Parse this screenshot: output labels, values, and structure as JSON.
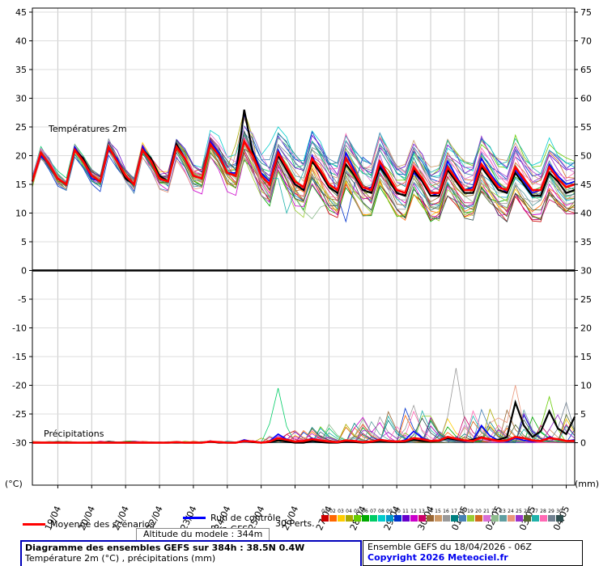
{
  "chart_data": {
    "type": "line",
    "title": "Diagramme des ensembles GEFS sur 384h : 38.5N 0.4W",
    "subtitle": "Température 2m (°C) , précipitations (mm)",
    "x": {
      "day_labels": [
        "19/04",
        "20/04",
        "21/04",
        "22/04",
        "23/04",
        "24/04",
        "25/04",
        "26/04",
        "27/04",
        "28/04",
        "29/04",
        "30/04",
        "01/05",
        "02/05",
        "03/05",
        "04/05"
      ],
      "steps": 65,
      "hours_per_step": 6
    },
    "axes": {
      "left_ticks": [
        45,
        40,
        35,
        30,
        25,
        20,
        15,
        10,
        5,
        0,
        -5,
        -10,
        -15,
        -20,
        -25,
        -30
      ],
      "right_ticks": [
        75,
        70,
        65,
        60,
        55,
        50,
        45,
        40,
        35,
        30,
        25,
        20,
        15,
        10,
        5,
        0
      ],
      "left_unit": "(°C)",
      "right_unit": "(mm)",
      "left_range": [
        -30,
        45
      ],
      "right_range": [
        0,
        75
      ],
      "grid": true,
      "separator_value": 0
    },
    "colors": {
      "mean": "#ff0000",
      "control": "#0000ff",
      "gfs": "#000000",
      "grid": "#c8c8c8"
    },
    "temperature": {
      "label": "Températures 2m",
      "mean": [
        15.5,
        20.5,
        18.5,
        16,
        15,
        21,
        19,
        16.5,
        15.5,
        21.5,
        19,
        16.5,
        15,
        21,
        19,
        16,
        15.5,
        21.5,
        19.5,
        16.5,
        16,
        22,
        20,
        17,
        16.5,
        22.5,
        20,
        16.5,
        15,
        20.5,
        18,
        15.5,
        14.5,
        19.5,
        17.5,
        15,
        14,
        19.5,
        17,
        14.5,
        14,
        19,
        16.5,
        14,
        13.5,
        18,
        16,
        13.5,
        13.5,
        18,
        16,
        14,
        14,
        18.5,
        16.5,
        14.5,
        14,
        18,
        16,
        14,
        14,
        18,
        16,
        14.5,
        15
      ],
      "control": [
        15.5,
        20,
        18.5,
        16,
        15,
        21.5,
        19,
        16,
        15.5,
        21,
        19.5,
        16.5,
        15,
        21.5,
        19,
        16,
        15.5,
        22,
        19.5,
        16.5,
        16,
        22.5,
        20.5,
        17,
        17,
        27.5,
        21,
        17,
        15.5,
        21,
        18,
        15,
        14,
        20,
        17,
        14.5,
        13.5,
        20.5,
        17.5,
        14,
        14.5,
        18.5,
        16,
        13.5,
        13,
        17,
        15.5,
        13,
        13.5,
        19,
        16.5,
        14,
        14.5,
        19.5,
        17,
        15,
        13.5,
        17.5,
        15.5,
        13.5,
        14,
        18.5,
        16.5,
        15,
        15.5
      ],
      "gfs": [
        15.5,
        20.5,
        18.5,
        16,
        15,
        21,
        19.5,
        16.5,
        15.5,
        21.5,
        19,
        16,
        15,
        21,
        19.5,
        16.5,
        15.5,
        22,
        19.5,
        16.5,
        16,
        22,
        20,
        17,
        16.5,
        28,
        20.5,
        16.5,
        15,
        20,
        17.5,
        15,
        14,
        19,
        17,
        14.5,
        13.5,
        18.5,
        16.5,
        14,
        13.5,
        18,
        16,
        13.5,
        13,
        17.5,
        15.5,
        13,
        13,
        17.5,
        15.5,
        13.5,
        13.5,
        18,
        16,
        14,
        13.5,
        17,
        15,
        13,
        13,
        17,
        15.5,
        13.5,
        14
      ],
      "events": [
        {
          "member": 3,
          "index": 25,
          "value": 27.8
        },
        {
          "member": 14,
          "index": 25,
          "value": 26.5
        },
        {
          "member": 7,
          "index": 29,
          "value": 25.0
        },
        {
          "member": 21,
          "index": 33,
          "value": 9.0
        },
        {
          "member": 9,
          "index": 37,
          "value": 8.5
        },
        {
          "member": 26,
          "index": 30,
          "value": 10.0
        }
      ]
    },
    "precipitation": {
      "label": "Précipitations",
      "mean": [
        0,
        0,
        0,
        0,
        0,
        0,
        0,
        0,
        0,
        0,
        0,
        0,
        0,
        0,
        0,
        0,
        0,
        0.1,
        0,
        0,
        0,
        0.2,
        0.1,
        0,
        0,
        0.3,
        0.2,
        0,
        0.2,
        0.8,
        0.5,
        0.2,
        0.3,
        0.6,
        0.4,
        0.2,
        0.1,
        0.4,
        0.3,
        0.1,
        0.2,
        0.5,
        0.3,
        0.2,
        0.3,
        0.8,
        0.6,
        0.3,
        0.4,
        1,
        0.7,
        0.4,
        0.3,
        0.9,
        0.6,
        0.3,
        0.4,
        1,
        0.8,
        0.4,
        0.3,
        0.8,
        0.6,
        0.3,
        0.3
      ],
      "control": [
        0,
        0,
        0,
        0,
        0,
        0,
        0,
        0,
        0,
        0,
        0,
        0,
        0,
        0,
        0,
        0,
        0,
        0,
        0,
        0,
        0,
        0.3,
        0,
        0,
        0,
        0.5,
        0.2,
        0,
        0.3,
        1.5,
        0.6,
        0.2,
        0.2,
        0.8,
        0.3,
        0,
        0,
        0.3,
        0.2,
        0,
        0.2,
        0.6,
        0.3,
        0.1,
        0.5,
        2,
        0.8,
        0.3,
        0.3,
        1,
        0.5,
        0.2,
        0.5,
        3,
        1.2,
        0.4,
        0.2,
        0.8,
        0.4,
        0.2,
        0.3,
        1,
        0.5,
        0.3,
        0.5
      ],
      "gfs": [
        0,
        0,
        0,
        0,
        0,
        0,
        0,
        0,
        0,
        0,
        0,
        0,
        0,
        0,
        0,
        0,
        0,
        0,
        0,
        0,
        0,
        0.2,
        0,
        0,
        0,
        0.3,
        0.1,
        0,
        0.1,
        0.4,
        0.2,
        0,
        0,
        0.3,
        0.1,
        0,
        0,
        0.2,
        0.1,
        0,
        0.1,
        0.3,
        0.2,
        0.1,
        0.2,
        0.5,
        0.3,
        0.2,
        0.3,
        0.8,
        0.5,
        0.3,
        0.5,
        1,
        0.5,
        0.5,
        1,
        7,
        3,
        1,
        2,
        5.5,
        2.5,
        1.5,
        4.5
      ],
      "events": [
        {
          "member": 6,
          "index": 29,
          "value": 9.5
        },
        {
          "member": 15,
          "index": 45,
          "value": 6.5
        },
        {
          "member": 15,
          "index": 50,
          "value": 13.0
        },
        {
          "member": 23,
          "index": 57,
          "value": 10.0
        },
        {
          "member": 4,
          "index": 61,
          "value": 8.0
        },
        {
          "member": 28,
          "index": 63,
          "value": 7.0
        },
        {
          "member": 11,
          "index": 41,
          "value": 3.5
        }
      ]
    },
    "ensemble": {
      "count": 30,
      "seed": 20260418,
      "temp_spread_by_day": [
        1.0,
        1.3,
        1.5,
        1.8,
        2.2,
        3.0,
        4.5,
        5.5,
        5.0,
        5.0,
        5.0,
        5.0,
        5.0,
        5.0,
        5.5,
        5.5,
        5.0
      ],
      "colors": [
        "#cc0000",
        "#ff6600",
        "#ffcc00",
        "#aaaa00",
        "#66cc00",
        "#00aa00",
        "#00cc66",
        "#00cccc",
        "#0099cc",
        "#0033cc",
        "#6600cc",
        "#cc00cc",
        "#cc0066",
        "#996633",
        "#cc9966",
        "#999999",
        "#008080",
        "#4682b4",
        "#9acd32",
        "#d2691e",
        "#da70d6",
        "#8fbc8f",
        "#5f9ea0",
        "#e9967a",
        "#9932cc",
        "#556b2f",
        "#20b2aa",
        "#ff69b4",
        "#708090",
        "#2f4f4f"
      ]
    }
  },
  "legend": {
    "mean": "Moyenne des scénarios",
    "control": "Run de contrôle",
    "gfs": "Run GFS",
    "perts": "30 Perts."
  },
  "altitude": "Altitude du modele : 344m",
  "footer": {
    "title_line1": "Diagramme des ensembles GEFS sur 384h : 38.5N 0.4W",
    "title_line2": "Température 2m (°C) , précipitations (mm)",
    "run_info": "Ensemble GEFS du 18/04/2026 - 06Z",
    "copyright": "Copyright 2026 Meteociel.fr"
  }
}
